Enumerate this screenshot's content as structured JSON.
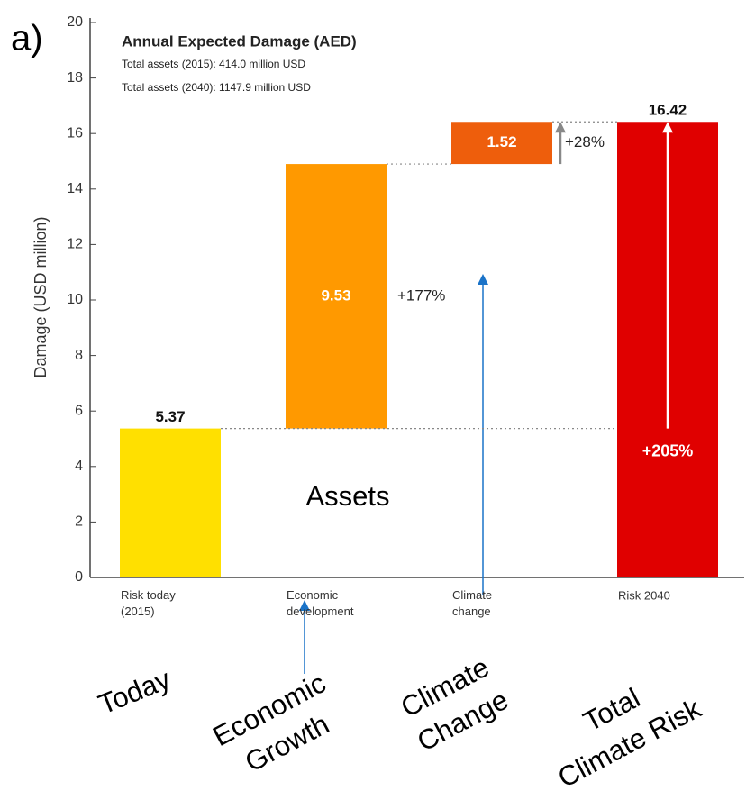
{
  "chart_data": {
    "type": "waterfall",
    "panel_label": "a)",
    "title": "Annual Expected Damage (AED)",
    "subtitle": [
      "Total assets (2015): 414.0 million USD",
      "Total assets (2040): 1147.9 million USD"
    ],
    "y_label": "Damage (USD million)",
    "categories": [
      "Risk today\n(2015)",
      "Economic\ndevelopment",
      "Climate\nchange",
      "Risk 2040"
    ],
    "values": [
      5.37,
      9.53,
      1.52,
      16.42
    ],
    "measure": [
      "absolute",
      "relative",
      "relative",
      "total"
    ],
    "colors": [
      "#ffe000",
      "#ff9900",
      "#ee5e0c",
      "#e00000"
    ],
    "ylim": [
      0,
      20
    ],
    "yticks": [
      0,
      2,
      4,
      6,
      8,
      10,
      12,
      14,
      16,
      18,
      20
    ],
    "annotations": {
      "growth": "+177%",
      "climate": "+28%",
      "total": "+205%",
      "assets": "Assets"
    },
    "captions": [
      "Today",
      "Economic\nGrowth",
      "Climate\nChange",
      "Total\nClimate Risk"
    ]
  }
}
